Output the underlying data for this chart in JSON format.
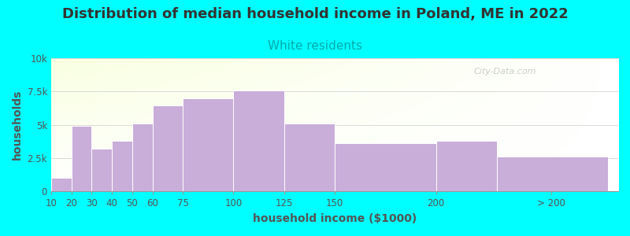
{
  "title": "Distribution of median household income in Poland, ME in 2022",
  "subtitle": "White residents",
  "xlabel": "household income ($1000)",
  "ylabel": "households",
  "background_color": "#00FFFF",
  "bar_color": "#c9aed9",
  "bar_edgecolor": "#ffffff",
  "categories": [
    "10",
    "20",
    "30",
    "40",
    "50",
    "60",
    "75",
    "100",
    "125",
    "150",
    "200",
    "> 200"
  ],
  "values": [
    1000,
    4900,
    3200,
    3800,
    5100,
    6450,
    7000,
    7600,
    5100,
    3650,
    3800,
    2600
  ],
  "left_edges": [
    10,
    20,
    30,
    40,
    50,
    60,
    75,
    100,
    125,
    150,
    200,
    230
  ],
  "widths": [
    10,
    10,
    10,
    10,
    10,
    15,
    25,
    25,
    25,
    50,
    30,
    55
  ],
  "ylim": [
    0,
    10000
  ],
  "yticks": [
    0,
    2500,
    5000,
    7500,
    10000
  ],
  "ytick_labels": [
    "0",
    "2.5k",
    "5k",
    "7.5k",
    "10k"
  ],
  "xtick_positions": [
    10,
    20,
    30,
    40,
    50,
    60,
    75,
    100,
    125,
    150,
    200,
    257
  ],
  "xtick_labels": [
    "10",
    "20",
    "30",
    "40",
    "50",
    "60",
    "75",
    "100",
    "125",
    "150",
    "200",
    "> 200"
  ],
  "xlim": [
    10,
    290
  ],
  "title_fontsize": 13,
  "subtitle_fontsize": 11,
  "subtitle_color": "#00aaaa",
  "watermark": "City-Data.com",
  "title_color": "#333333",
  "axis_label_color": "#555555",
  "tick_label_color": "#555555"
}
